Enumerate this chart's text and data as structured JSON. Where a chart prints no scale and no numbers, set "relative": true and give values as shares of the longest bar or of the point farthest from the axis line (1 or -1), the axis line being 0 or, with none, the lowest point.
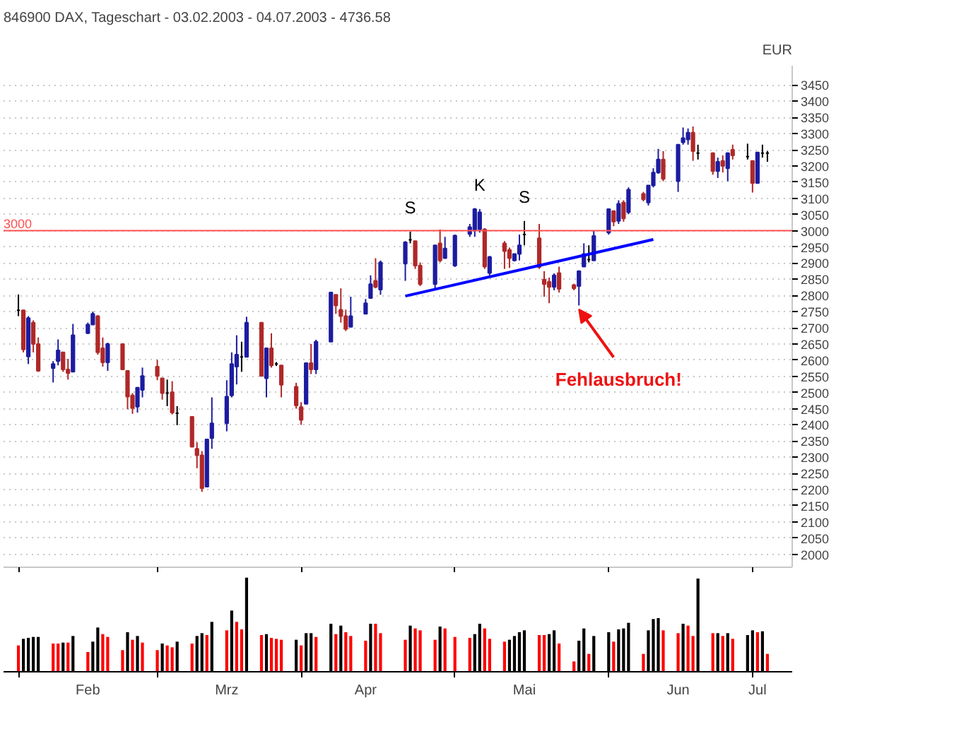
{
  "chart_data": [
    {
      "type": "candlestick",
      "title": "846900 DAX, Tageschart - 03.02.2003 - 04.07.2003 - 4736.58",
      "ylabel": "EUR",
      "x": [
        "2003-02-03",
        "2003-02-04",
        "2003-02-05",
        "2003-02-06",
        "2003-02-07",
        "2003-02-10",
        "2003-02-11",
        "2003-02-12",
        "2003-02-13",
        "2003-02-14",
        "2003-02-17",
        "2003-02-18",
        "2003-02-19",
        "2003-02-20",
        "2003-02-21",
        "2003-02-24",
        "2003-02-25",
        "2003-02-26",
        "2003-02-27",
        "2003-02-28",
        "2003-03-03",
        "2003-03-04",
        "2003-03-05",
        "2003-03-06",
        "2003-03-07",
        "2003-03-10",
        "2003-03-11",
        "2003-03-12",
        "2003-03-13",
        "2003-03-14",
        "2003-03-17",
        "2003-03-18",
        "2003-03-19",
        "2003-03-20",
        "2003-03-21",
        "2003-03-24",
        "2003-03-25",
        "2003-03-26",
        "2003-03-27",
        "2003-03-28",
        "2003-03-31",
        "2003-04-01",
        "2003-04-02",
        "2003-04-03",
        "2003-04-04",
        "2003-04-07",
        "2003-04-08",
        "2003-04-09",
        "2003-04-10",
        "2003-04-11",
        "2003-04-14",
        "2003-04-15",
        "2003-04-16",
        "2003-04-17",
        "2003-04-22",
        "2003-04-23",
        "2003-04-24",
        "2003-04-25",
        "2003-04-28",
        "2003-04-29",
        "2003-04-30",
        "2003-05-02",
        "2003-05-05",
        "2003-05-06",
        "2003-05-07",
        "2003-05-08",
        "2003-05-09",
        "2003-05-12",
        "2003-05-13",
        "2003-05-14",
        "2003-05-15",
        "2003-05-16",
        "2003-05-19",
        "2003-05-20",
        "2003-05-21",
        "2003-05-22",
        "2003-05-23",
        "2003-05-26",
        "2003-05-27",
        "2003-05-28",
        "2003-05-29",
        "2003-05-30",
        "2003-06-02",
        "2003-06-03",
        "2003-06-04",
        "2003-06-05",
        "2003-06-06",
        "2003-06-09",
        "2003-06-10",
        "2003-06-11",
        "2003-06-12",
        "2003-06-13",
        "2003-06-16",
        "2003-06-17",
        "2003-06-18",
        "2003-06-19",
        "2003-06-20",
        "2003-06-23",
        "2003-06-24",
        "2003-06-25",
        "2003-06-26",
        "2003-06-27",
        "2003-06-30",
        "2003-07-01",
        "2003-07-02",
        "2003-07-03",
        "2003-07-04"
      ],
      "ohlc": [
        [
          2754,
          2803,
          2736,
          2754
        ],
        [
          2754,
          2756,
          2624,
          2633
        ],
        [
          2611,
          2736,
          2588,
          2730
        ],
        [
          2716,
          2723,
          2624,
          2650
        ],
        [
          2650,
          2670,
          2564,
          2567
        ],
        [
          2575,
          2597,
          2531,
          2588
        ],
        [
          2597,
          2664,
          2584,
          2630
        ],
        [
          2624,
          2624,
          2564,
          2571
        ],
        [
          2571,
          2604,
          2540,
          2560
        ],
        [
          2564,
          2712,
          2564,
          2677
        ],
        [
          2683,
          2716,
          2681,
          2710
        ],
        [
          2710,
          2750,
          2710,
          2743
        ],
        [
          2736,
          2739,
          2617,
          2624
        ],
        [
          2637,
          2670,
          2580,
          2593
        ],
        [
          2593,
          2654,
          2567,
          2650
        ],
        [
          2650,
          2650,
          2571,
          2571
        ],
        [
          2567,
          2567,
          2448,
          2487
        ],
        [
          2491,
          2498,
          2434,
          2452
        ],
        [
          2456,
          2515,
          2438,
          2515
        ],
        [
          2508,
          2577,
          2485,
          2551
        ],
        [
          2580,
          2601,
          2538,
          2551
        ],
        [
          2544,
          2544,
          2478,
          2498
        ],
        [
          2498,
          2540,
          2458,
          2498
        ],
        [
          2501,
          2535,
          2432,
          2438
        ],
        [
          2436,
          2458,
          2399,
          2436
        ],
        [
          2425,
          2425,
          2332,
          2332
        ],
        [
          2326,
          2346,
          2266,
          2306
        ],
        [
          2306,
          2319,
          2193,
          2204
        ],
        [
          2209,
          2355,
          2207,
          2355
        ],
        [
          2359,
          2485,
          2326,
          2405
        ],
        [
          2405,
          2538,
          2380,
          2487
        ],
        [
          2491,
          2624,
          2485,
          2588
        ],
        [
          2580,
          2677,
          2525,
          2617
        ],
        [
          2610,
          2657,
          2564,
          2610
        ],
        [
          2610,
          2734,
          2610,
          2716
        ],
        [
          2716,
          2716,
          2551,
          2551
        ],
        [
          2544,
          2637,
          2485,
          2637
        ],
        [
          2637,
          2683,
          2577,
          2584
        ],
        [
          2588,
          2594,
          2582,
          2588
        ],
        [
          2584,
          2584,
          2485,
          2524
        ],
        [
          2518,
          2530,
          2450,
          2460
        ],
        [
          2455,
          2470,
          2400,
          2415
        ],
        [
          2465,
          2591,
          2465,
          2591
        ],
        [
          2591,
          2650,
          2557,
          2571
        ],
        [
          2571,
          2663,
          2557,
          2657
        ],
        [
          2657,
          2809,
          2657,
          2809
        ],
        [
          2802,
          2802,
          2743,
          2769
        ],
        [
          2756,
          2822,
          2716,
          2736
        ],
        [
          2736,
          2756,
          2690,
          2696
        ],
        [
          2703,
          2796,
          2703,
          2736
        ],
        [
          2743,
          2789,
          2743,
          2776
        ],
        [
          2792,
          2862,
          2792,
          2835
        ],
        [
          2845,
          2915,
          2822,
          2826
        ],
        [
          2818,
          2908,
          2802,
          2902
        ],
        [
          2898,
          2968,
          2845,
          2964
        ],
        [
          2972,
          2997,
          2961,
          2972
        ],
        [
          2968,
          2968,
          2882,
          2892
        ],
        [
          2892,
          2902,
          2829,
          2835
        ],
        [
          2835,
          2955,
          2822,
          2955
        ],
        [
          2961,
          3004,
          2902,
          2908
        ],
        [
          2915,
          2981,
          2915,
          2945
        ],
        [
          2892,
          2988,
          2888,
          2985
        ],
        [
          2990,
          3021,
          2981,
          3011
        ],
        [
          3001,
          3070,
          2981,
          3067
        ],
        [
          3004,
          3067,
          2994,
          3057
        ],
        [
          3004,
          3008,
          2882,
          2889
        ],
        [
          2869,
          2922,
          2862,
          2919
        ],
        [
          2961,
          2968,
          2882,
          2937
        ],
        [
          2941,
          2948,
          2885,
          2915
        ],
        [
          2908,
          2928,
          2905,
          2928
        ],
        [
          2928,
          2988,
          2908,
          2955
        ],
        [
          2988,
          3030,
          2955,
          2988
        ],
        [
          2977,
          3021,
          2882,
          2888
        ],
        [
          2849,
          2875,
          2796,
          2835
        ],
        [
          2842,
          2855,
          2776,
          2826
        ],
        [
          2826,
          2868,
          2816,
          2862
        ],
        [
          2869,
          2889,
          2809,
          2820
        ],
        [
          2832,
          2836,
          2816,
          2822
        ],
        [
          2829,
          2875,
          2769,
          2875
        ],
        [
          2889,
          2961,
          2889,
          2928
        ],
        [
          2911,
          2955,
          2902,
          2911
        ],
        [
          2908,
          3001,
          2908,
          2984
        ],
        [
          2994,
          3067,
          2988,
          3067
        ],
        [
          3061,
          3061,
          3014,
          3028
        ],
        [
          3030,
          3094,
          3021,
          3083
        ],
        [
          3087,
          3094,
          3028,
          3038
        ],
        [
          3057,
          3134,
          3051,
          3127
        ],
        [
          3114,
          3120,
          3091,
          3097
        ],
        [
          3087,
          3140,
          3078,
          3140
        ],
        [
          3140,
          3193,
          3134,
          3180
        ],
        [
          3180,
          3253,
          3176,
          3220
        ],
        [
          3220,
          3246,
          3153,
          3160
        ],
        [
          3153,
          3266,
          3120,
          3266
        ],
        [
          3273,
          3319,
          3266,
          3286
        ],
        [
          3282,
          3316,
          3266,
          3303
        ],
        [
          3303,
          3322,
          3216,
          3246
        ],
        [
          3240,
          3266,
          3220,
          3240
        ],
        [
          3240,
          3242,
          3173,
          3184
        ],
        [
          3184,
          3226,
          3163,
          3213
        ],
        [
          3216,
          3233,
          3180,
          3200
        ],
        [
          3193,
          3242,
          3153,
          3240
        ],
        [
          3250,
          3266,
          3220,
          3233
        ],
        [
          3229,
          3269,
          3220,
          3229
        ],
        [
          3216,
          3216,
          3118,
          3147
        ],
        [
          3147,
          3242,
          3147,
          3242
        ],
        [
          3240,
          3266,
          3226,
          3240
        ],
        [
          3240,
          3246,
          3213,
          3240
        ]
      ],
      "colors": [
        "#000000",
        "#b02828",
        "#1c1ca0",
        "#b02828",
        "#b02828",
        "#1c1ca0",
        "#1c1ca0",
        "#b02828",
        "#b02828",
        "#1c1ca0",
        "#1c1ca0",
        "#1c1ca0",
        "#b02828",
        "#b02828",
        "#1c1ca0",
        "#b02828",
        "#b02828",
        "#b02828",
        "#1c1ca0",
        "#1c1ca0",
        "#b02828",
        "#b02828",
        "#000000",
        "#b02828",
        "#000000",
        "#b02828",
        "#b02828",
        "#b02828",
        "#1c1ca0",
        "#1c1ca0",
        "#1c1ca0",
        "#1c1ca0",
        "#1c1ca0",
        "#000000",
        "#1c1ca0",
        "#b02828",
        "#1c1ca0",
        "#b02828",
        "#000000",
        "#b02828",
        "#b02828",
        "#b02828",
        "#1c1ca0",
        "#b02828",
        "#1c1ca0",
        "#1c1ca0",
        "#b02828",
        "#b02828",
        "#b02828",
        "#1c1ca0",
        "#1c1ca0",
        "#1c1ca0",
        "#b02828",
        "#1c1ca0",
        "#1c1ca0",
        "#000000",
        "#b02828",
        "#b02828",
        "#1c1ca0",
        "#b02828",
        "#1c1ca0",
        "#1c1ca0",
        "#1c1ca0",
        "#1c1ca0",
        "#1c1ca0",
        "#b02828",
        "#1c1ca0",
        "#b02828",
        "#b02828",
        "#1c1ca0",
        "#1c1ca0",
        "#000000",
        "#b02828",
        "#b02828",
        "#b02828",
        "#1c1ca0",
        "#b02828",
        "#b02828",
        "#1c1ca0",
        "#1c1ca0",
        "#000000",
        "#1c1ca0",
        "#1c1ca0",
        "#b02828",
        "#1c1ca0",
        "#b02828",
        "#1c1ca0",
        "#b02828",
        "#1c1ca0",
        "#1c1ca0",
        "#1c1ca0",
        "#b02828",
        "#1c1ca0",
        "#1c1ca0",
        "#1c1ca0",
        "#b02828",
        "#000000",
        "#b02828",
        "#1c1ca0",
        "#b02828",
        "#1c1ca0",
        "#b02828",
        "#000000",
        "#b02828",
        "#1c1ca0",
        "#000000",
        "#000000"
      ],
      "series": [
        {
          "type": "line",
          "x": [
            "2003-04-22",
            "2003-06-11"
          ],
          "values": [
            2798,
            2973
          ],
          "color": "#0000ff"
        }
      ],
      "xlim": [
        "2003-01-31",
        "2003-07-09"
      ],
      "xticks": [
        {
          "value": "2003-02-03",
          "label": null
        },
        {
          "value": "2003-03-03",
          "label": null
        },
        {
          "value": "2003-04-01",
          "label": null
        },
        {
          "value": "2003-05-02",
          "label": null
        },
        {
          "value": "2003-06-02",
          "label": null
        },
        {
          "value": "2003-07-01",
          "label": null
        }
      ],
      "ylim": [
        1960,
        3510
      ],
      "yticks": [
        2000,
        2050,
        2100,
        2150,
        2200,
        2250,
        2300,
        2350,
        2400,
        2450,
        2500,
        2550,
        2600,
        2650,
        2700,
        2750,
        2800,
        2850,
        2900,
        2950,
        3000,
        3050,
        3100,
        3150,
        3200,
        3250,
        3300,
        3350,
        3400,
        3450
      ],
      "grid": "y",
      "tick_labels": "y",
      "ref_lines": [
        {
          "axis": "y",
          "value": 3000,
          "label": "3000",
          "color": "#ff5050"
        }
      ],
      "annotations": [
        {
          "text": "S",
          "x": "2003-04-23",
          "y": 2997
        },
        {
          "text": "K",
          "x": "2003-05-07",
          "y": 3067
        },
        {
          "text": "S",
          "x": "2003-05-16",
          "y": 3030
        },
        {
          "text": "Fehlausbruch!",
          "x": "2003-05-27",
          "y": 2769
        }
      ]
    },
    {
      "type": "bar",
      "relative": true,
      "x": [
        "2003-02-03",
        "2003-02-04",
        "2003-02-05",
        "2003-02-06",
        "2003-02-07",
        "2003-02-10",
        "2003-02-11",
        "2003-02-12",
        "2003-02-13",
        "2003-02-14",
        "2003-02-17",
        "2003-02-18",
        "2003-02-19",
        "2003-02-20",
        "2003-02-21",
        "2003-02-24",
        "2003-02-25",
        "2003-02-26",
        "2003-02-27",
        "2003-02-28",
        "2003-03-03",
        "2003-03-04",
        "2003-03-05",
        "2003-03-06",
        "2003-03-07",
        "2003-03-10",
        "2003-03-11",
        "2003-03-12",
        "2003-03-13",
        "2003-03-14",
        "2003-03-17",
        "2003-03-18",
        "2003-03-19",
        "2003-03-20",
        "2003-03-21",
        "2003-03-24",
        "2003-03-25",
        "2003-03-26",
        "2003-03-27",
        "2003-03-28",
        "2003-03-31",
        "2003-04-01",
        "2003-04-02",
        "2003-04-03",
        "2003-04-04",
        "2003-04-07",
        "2003-04-08",
        "2003-04-09",
        "2003-04-10",
        "2003-04-11",
        "2003-04-14",
        "2003-04-15",
        "2003-04-16",
        "2003-04-17",
        "2003-04-22",
        "2003-04-23",
        "2003-04-24",
        "2003-04-25",
        "2003-04-28",
        "2003-04-29",
        "2003-04-30",
        "2003-05-02",
        "2003-05-05",
        "2003-05-06",
        "2003-05-07",
        "2003-05-08",
        "2003-05-09",
        "2003-05-12",
        "2003-05-13",
        "2003-05-14",
        "2003-05-15",
        "2003-05-16",
        "2003-05-19",
        "2003-05-20",
        "2003-05-21",
        "2003-05-22",
        "2003-05-23",
        "2003-05-26",
        "2003-05-27",
        "2003-05-28",
        "2003-05-29",
        "2003-05-30",
        "2003-06-02",
        "2003-06-03",
        "2003-06-04",
        "2003-06-05",
        "2003-06-06",
        "2003-06-09",
        "2003-06-10",
        "2003-06-11",
        "2003-06-12",
        "2003-06-13",
        "2003-06-16",
        "2003-06-17",
        "2003-06-18",
        "2003-06-19",
        "2003-06-20",
        "2003-06-23",
        "2003-06-24",
        "2003-06-25",
        "2003-06-26",
        "2003-06-27",
        "2003-06-30",
        "2003-07-01",
        "2003-07-02",
        "2003-07-03",
        "2003-07-04"
      ],
      "values": [
        0.28,
        0.35,
        0.36,
        0.37,
        0.37,
        0.3,
        0.3,
        0.31,
        0.31,
        0.38,
        0.21,
        0.32,
        0.47,
        0.4,
        0.37,
        0.23,
        0.42,
        0.34,
        0.38,
        0.31,
        0.23,
        0.3,
        0.28,
        0.26,
        0.32,
        0.3,
        0.38,
        0.41,
        0.39,
        0.53,
        0.44,
        0.65,
        0.53,
        0.45,
        1,
        0.39,
        0.4,
        0.36,
        0.35,
        0.34,
        0.34,
        0.28,
        0.41,
        0.41,
        0.37,
        0.51,
        0.4,
        0.49,
        0.42,
        0.38,
        0.33,
        0.51,
        0.51,
        0.41,
        0.34,
        0.49,
        0.46,
        0.44,
        0.34,
        0.48,
        0.46,
        0.37,
        0.36,
        0.4,
        0.51,
        0.46,
        0.35,
        0.32,
        0.34,
        0.38,
        0.42,
        0.44,
        0.39,
        0.39,
        0.4,
        0.44,
        0.3,
        0.11,
        0.33,
        0.46,
        0.19,
        0.38,
        0.42,
        0.32,
        0.45,
        0.46,
        0.52,
        0.19,
        0.44,
        0.56,
        0.57,
        0.44,
        0.41,
        0.51,
        0.49,
        0.38,
        0.99,
        0.41,
        0.41,
        0.38,
        0.41,
        0.35,
        0.39,
        0.44,
        0.42,
        0.43,
        0.19
      ],
      "colors": [
        "#ff0000",
        "#000000",
        "#000000",
        "#000000",
        "#000000",
        "#ff0000",
        "#ff0000",
        "#000000",
        "#ff0000",
        "#000000",
        "#ff0000",
        "#000000",
        "#000000",
        "#ff0000",
        "#ff0000",
        "#ff0000",
        "#000000",
        "#ff0000",
        "#000000",
        "#ff0000",
        "#ff0000",
        "#000000",
        "#ff0000",
        "#ff0000",
        "#000000",
        "#ff0000",
        "#000000",
        "#000000",
        "#ff0000",
        "#000000",
        "#ff0000",
        "#000000",
        "#ff0000",
        "#ff0000",
        "#000000",
        "#ff0000",
        "#000000",
        "#ff0000",
        "#ff0000",
        "#ff0000",
        "#000000",
        "#ff0000",
        "#000000",
        "#000000",
        "#ff0000",
        "#000000",
        "#ff0000",
        "#000000",
        "#ff0000",
        "#ff0000",
        "#ff0000",
        "#000000",
        "#ff0000",
        "#ff0000",
        "#ff0000",
        "#000000",
        "#ff0000",
        "#ff0000",
        "#ff0000",
        "#000000",
        "#ff0000",
        "#ff0000",
        "#ff0000",
        "#000000",
        "#000000",
        "#ff0000",
        "#ff0000",
        "#ff0000",
        "#000000",
        "#000000",
        "#000000",
        "#000000",
        "#ff0000",
        "#ff0000",
        "#000000",
        "#000000",
        "#ff0000",
        "#ff0000",
        "#000000",
        "#000000",
        "#ff0000",
        "#000000",
        "#000000",
        "#ff0000",
        "#000000",
        "#000000",
        "#000000",
        "#ff0000",
        "#000000",
        "#000000",
        "#000000",
        "#ff0000",
        "#ff0000",
        "#000000",
        "#ff0000",
        "#ff0000",
        "#000000",
        "#ff0000",
        "#000000",
        "#ff0000",
        "#000000",
        "#ff0000",
        "#000000",
        "#000000",
        "#ff0000",
        "#000000",
        "#ff0000"
      ],
      "xlim": [
        "2003-01-31",
        "2003-07-09"
      ],
      "xticks": [
        {
          "value": "2003-02-03",
          "label": null
        },
        {
          "value": "2003-02-17",
          "label": "Feb"
        },
        {
          "value": "2003-03-03",
          "label": null
        },
        {
          "value": "2003-03-17",
          "label": "Mrz"
        },
        {
          "value": "2003-04-01",
          "label": null
        },
        {
          "value": "2003-04-14",
          "label": "Apr"
        },
        {
          "value": "2003-05-02",
          "label": null
        },
        {
          "value": "2003-05-16",
          "label": "Mai"
        },
        {
          "value": "2003-06-02",
          "label": null
        },
        {
          "value": "2003-06-16",
          "label": "Jun"
        },
        {
          "value": "2003-07-01",
          "label": null
        },
        {
          "value": "2003-07-02",
          "label": "Jul"
        }
      ],
      "tick_labels": "x"
    }
  ]
}
